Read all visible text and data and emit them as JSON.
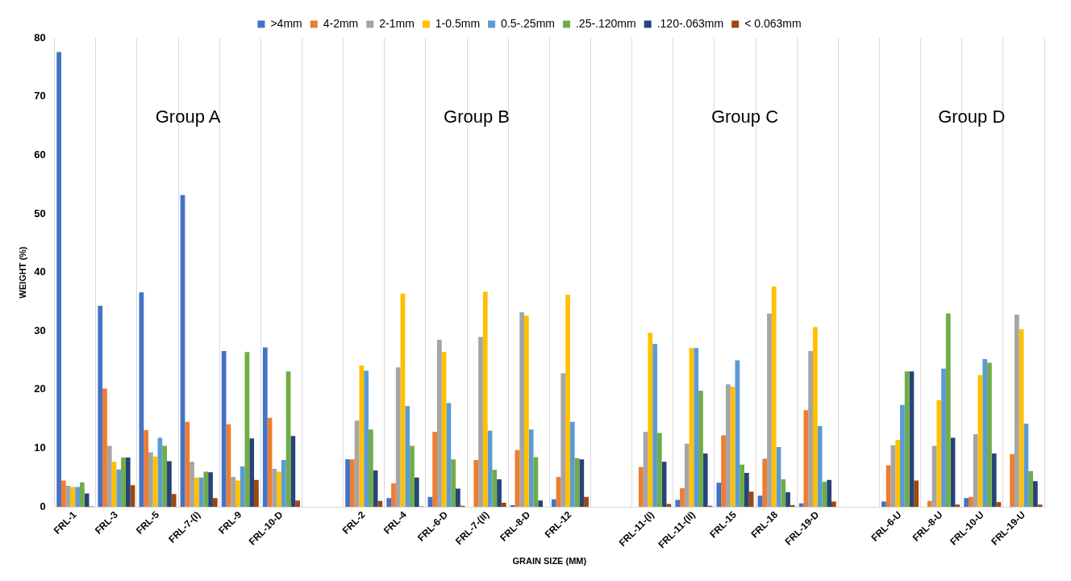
{
  "chart_data": {
    "type": "bar",
    "xlabel": "GRAIN SIZE (MM)",
    "ylabel": "WEIGHT (%)",
    "categories": [
      "FRL-1",
      "FRL-3",
      "FRL-5",
      "FRL-7-(I)",
      "FRL-9",
      "FRL-10-D",
      null,
      "FRL-2",
      "FRL-4",
      "FRL-6-D",
      "FRL-7-(II)",
      "FRL-8-D",
      "FRL-12",
      null,
      "FRL-11-(I)",
      "FRL-11-(II)",
      "FRL-15",
      "FRL-18",
      "FRL-19-D",
      null,
      "FRL-6-U",
      "FRL-8-U",
      "FRL-10-U",
      "FRL-19-U"
    ],
    "series": [
      {
        "name": ">4mm",
        "color": "#4472c4",
        "values": [
          77.6,
          34.3,
          36.6,
          53.2,
          26.6,
          27.2,
          null,
          8.1,
          1.5,
          1.7,
          0,
          0.3,
          1.3,
          null,
          0,
          1.2,
          4.1,
          1.9,
          0.6,
          null,
          0.9,
          0,
          1.5,
          0
        ]
      },
      {
        "name": "4-2mm",
        "color": "#ed7d31",
        "values": [
          4.5,
          20.2,
          13.1,
          14.5,
          14.1,
          15.2,
          null,
          8.1,
          4.0,
          12.8,
          8.0,
          9.7,
          5.1,
          null,
          6.8,
          3.2,
          12.2,
          8.2,
          16.5,
          null,
          7.1,
          1.0,
          1.7,
          9.0
        ]
      },
      {
        "name": "2-1mm",
        "color": "#a5a5a5",
        "values": [
          3.6,
          10.4,
          9.3,
          7.7,
          5.1,
          6.5,
          null,
          14.7,
          23.8,
          28.5,
          29.0,
          33.2,
          22.8,
          null,
          12.8,
          10.8,
          20.9,
          33.0,
          26.6,
          null,
          10.5,
          10.4,
          12.4,
          32.8
        ]
      },
      {
        "name": "1-0.5mm",
        "color": "#ffc000",
        "values": [
          3.4,
          7.7,
          8.6,
          5.0,
          4.5,
          6.0,
          null,
          24.1,
          36.4,
          26.4,
          36.7,
          32.6,
          36.2,
          null,
          29.7,
          27.1,
          20.5,
          37.6,
          30.7,
          null,
          11.4,
          18.2,
          22.5,
          30.3
        ]
      },
      {
        "name": "0.5-.25mm",
        "color": "#5b9bd5",
        "values": [
          3.4,
          6.4,
          11.8,
          5.0,
          6.9,
          8.0,
          null,
          23.2,
          17.2,
          17.7,
          13.0,
          13.2,
          14.5,
          null,
          27.8,
          27.1,
          25.0,
          10.2,
          13.8,
          null,
          17.4,
          23.6,
          25.2,
          14.2
        ]
      },
      {
        "name": ".25-.120mm",
        "color": "#70ad47",
        "values": [
          4.2,
          8.4,
          10.4,
          6.0,
          26.4,
          23.1,
          null,
          13.2,
          10.4,
          8.1,
          6.3,
          8.5,
          8.3,
          null,
          12.6,
          19.8,
          7.2,
          4.7,
          4.3,
          null,
          23.1,
          33.0,
          24.6,
          6.1
        ]
      },
      {
        "name": ".120-.063mm",
        "color": "#264478",
        "values": [
          2.3,
          8.4,
          7.8,
          5.9,
          11.7,
          12.1,
          null,
          6.2,
          5.0,
          3.1,
          4.7,
          1.1,
          8.1,
          null,
          7.7,
          9.1,
          5.8,
          2.5,
          4.6,
          null,
          23.1,
          11.8,
          9.1,
          4.4
        ]
      },
      {
        "name": "< 0.063mm",
        "color": "#9e480e",
        "values": [
          0.1,
          3.7,
          2.2,
          1.5,
          4.6,
          1.1,
          null,
          1.0,
          0.1,
          0.2,
          0.7,
          0,
          1.7,
          null,
          0.5,
          0.2,
          2.6,
          0.3,
          0.9,
          null,
          4.5,
          0.4,
          0.8,
          0.4
        ]
      }
    ],
    "ylim": [
      0,
      80
    ],
    "yticks": [
      0,
      10,
      20,
      30,
      40,
      50,
      60,
      70,
      80
    ],
    "grid": "x",
    "legend": "top",
    "annotations": [
      "Group A",
      "Group B",
      "Group C",
      "Group D"
    ]
  }
}
